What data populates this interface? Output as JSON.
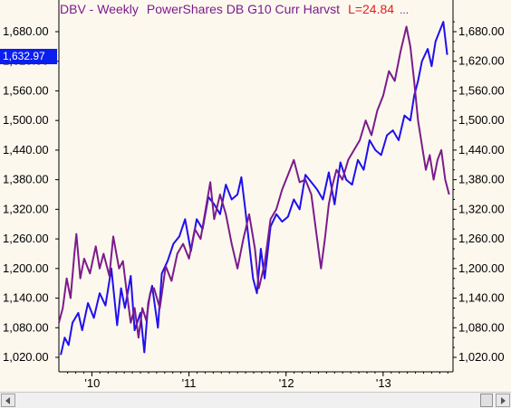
{
  "title": {
    "symbol_period": "DBV - Weekly",
    "name": "PowerShares DB G10 Curr Harvst",
    "last": "L=24.84",
    "ellipsis": "..."
  },
  "last_price_label": "1,632.97",
  "colors": {
    "background": "#fdf8ee",
    "index_line": "#1f10ee",
    "dbv_line": "#7b1c8c",
    "title_symbol": "#7b1c8c",
    "title_last": "#e02020",
    "last_price_bg": "#0a1ef0"
  },
  "chart_data": {
    "type": "line",
    "xlim": [
      2009.66,
      2013.72
    ],
    "ylim": [
      1000,
      1720
    ],
    "y_ticks": [
      1020,
      1080,
      1140,
      1200,
      1260,
      1320,
      1380,
      1440,
      1500,
      1560,
      1620,
      1680
    ],
    "y_tick_labels": [
      "1,020.00",
      "1,080.00",
      "1,140.00",
      "1,200.00",
      "1,260.00",
      "1,320.00",
      "1,380.00",
      "1,440.00",
      "1,500.00",
      "1,560.00",
      "1,620.00",
      "1,680.00"
    ],
    "x_ticks": [
      2010,
      2011,
      2012,
      2013
    ],
    "x_tick_labels": [
      "'10",
      "'11",
      "'12",
      "'13"
    ],
    "grid": false,
    "series": [
      {
        "color": "#1f10ee",
        "x": [
          2009.68,
          2009.72,
          2009.76,
          2009.8,
          2009.86,
          2009.9,
          2009.96,
          2010.02,
          2010.08,
          2010.14,
          2010.2,
          2010.26,
          2010.3,
          2010.34,
          2010.4,
          2010.44,
          2010.5,
          2010.54,
          2010.58,
          2010.62,
          2010.68,
          2010.72,
          2010.78,
          2010.84,
          2010.9,
          2010.96,
          2011.02,
          2011.08,
          2011.14,
          2011.2,
          2011.26,
          2011.32,
          2011.38,
          2011.44,
          2011.5,
          2011.54,
          2011.58,
          2011.62,
          2011.66,
          2011.7,
          2011.74,
          2011.78,
          2011.84,
          2011.9,
          2011.96,
          2012.02,
          2012.08,
          2012.14,
          2012.2,
          2012.26,
          2012.32,
          2012.38,
          2012.44,
          2012.5,
          2012.56,
          2012.62,
          2012.68,
          2012.74,
          2012.8,
          2012.86,
          2012.92,
          2012.98,
          2013.04,
          2013.1,
          2013.16,
          2013.22,
          2013.28,
          2013.32,
          2013.36,
          2013.4,
          2013.46,
          2013.5,
          2013.54,
          2013.58,
          2013.62,
          2013.66
        ],
        "values": [
          1025,
          1060,
          1045,
          1090,
          1110,
          1075,
          1130,
          1100,
          1150,
          1125,
          1200,
          1085,
          1160,
          1120,
          1185,
          1075,
          1110,
          1030,
          1130,
          1165,
          1080,
          1190,
          1215,
          1250,
          1265,
          1300,
          1235,
          1300,
          1280,
          1345,
          1330,
          1310,
          1370,
          1340,
          1350,
          1385,
          1320,
          1250,
          1180,
          1150,
          1240,
          1180,
          1285,
          1310,
          1295,
          1305,
          1340,
          1320,
          1390,
          1375,
          1360,
          1340,
          1395,
          1330,
          1415,
          1380,
          1370,
          1420,
          1400,
          1460,
          1440,
          1430,
          1470,
          1480,
          1460,
          1510,
          1500,
          1550,
          1580,
          1620,
          1645,
          1610,
          1660,
          1680,
          1700,
          1633
        ]
      },
      {
        "color": "#7b1c8c",
        "x": [
          2009.66,
          2009.7,
          2009.74,
          2009.78,
          2009.82,
          2009.84,
          2009.88,
          2009.92,
          2009.98,
          2010.04,
          2010.08,
          2010.12,
          2010.18,
          2010.22,
          2010.28,
          2010.32,
          2010.36,
          2010.4,
          2010.44,
          2010.48,
          2010.52,
          2010.56,
          2010.6,
          2010.64,
          2010.7,
          2010.76,
          2010.82,
          2010.88,
          2010.94,
          2011.0,
          2011.06,
          2011.12,
          2011.18,
          2011.22,
          2011.26,
          2011.32,
          2011.38,
          2011.44,
          2011.5,
          2011.56,
          2011.62,
          2011.68,
          2011.72,
          2011.78,
          2011.84,
          2011.9,
          2011.96,
          2012.02,
          2012.08,
          2012.14,
          2012.2,
          2012.26,
          2012.32,
          2012.36,
          2012.4,
          2012.44,
          2012.48,
          2012.52,
          2012.58,
          2012.64,
          2012.7,
          2012.76,
          2012.82,
          2012.88,
          2012.94,
          2013.0,
          2013.06,
          2013.12,
          2013.18,
          2013.24,
          2013.28,
          2013.32,
          2013.36,
          2013.4,
          2013.44,
          2013.48,
          2013.52,
          2013.56,
          2013.6,
          2013.64,
          2013.68
        ],
        "values": [
          1090,
          1120,
          1180,
          1140,
          1230,
          1270,
          1180,
          1220,
          1190,
          1245,
          1200,
          1230,
          1185,
          1265,
          1200,
          1215,
          1150,
          1090,
          1120,
          1060,
          1120,
          1095,
          1150,
          1160,
          1120,
          1205,
          1175,
          1230,
          1250,
          1220,
          1280,
          1260,
          1330,
          1375,
          1300,
          1350,
          1310,
          1250,
          1200,
          1260,
          1310,
          1240,
          1160,
          1210,
          1300,
          1320,
          1360,
          1390,
          1420,
          1375,
          1380,
          1350,
          1260,
          1200,
          1260,
          1330,
          1370,
          1400,
          1380,
          1420,
          1440,
          1460,
          1500,
          1470,
          1520,
          1550,
          1600,
          1580,
          1640,
          1690,
          1650,
          1580,
          1500,
          1450,
          1400,
          1430,
          1380,
          1420,
          1440,
          1380,
          1350
        ]
      }
    ]
  }
}
